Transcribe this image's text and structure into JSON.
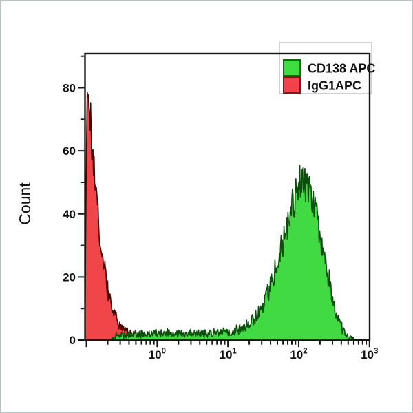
{
  "figure": {
    "background": "#ffffff",
    "frame_color": "#b7c2c2"
  },
  "chart_data": {
    "type": "area",
    "subtype": "flow-cytometry-histogram",
    "title": "",
    "xlabel": "",
    "ylabel": "Count",
    "x_scale": "log10",
    "x_range_log10": [
      -1.02,
      3.0
    ],
    "ylim": [
      0,
      90.8
    ],
    "grid": "off",
    "y_ticks": [
      0,
      20,
      40,
      60,
      80
    ],
    "y_minor_ticks": [
      10,
      30,
      50,
      70,
      90
    ],
    "x_ticks": [
      {
        "base": "",
        "exp": "",
        "log10": -1
      },
      {
        "base": "10",
        "exp": "0",
        "log10": 0
      },
      {
        "base": "10",
        "exp": "1",
        "log10": 1
      },
      {
        "base": "10",
        "exp": "2",
        "log10": 2
      },
      {
        "base": "10",
        "exp": "3",
        "log10": 3
      }
    ],
    "legend": {
      "position": "top-right",
      "items": [
        {
          "label": "CD138 APC",
          "swatch_fill": "#41dc41",
          "swatch_border": "#0c6b0c"
        },
        {
          "label": "IgG1APC",
          "swatch_fill": "#f2434c",
          "swatch_border": "#8d1118"
        }
      ]
    },
    "series": [
      {
        "name": "IgG1APC",
        "fill": "#f0464a",
        "stroke": "#4a0404",
        "noise_amp": 0.8,
        "clamp": 87,
        "points": [
          [
            -1.02,
            2
          ],
          [
            -1.005,
            45
          ],
          [
            -0.99,
            86
          ],
          [
            -0.975,
            78
          ],
          [
            -0.96,
            68
          ],
          [
            -0.945,
            74
          ],
          [
            -0.93,
            64
          ],
          [
            -0.915,
            56
          ],
          [
            -0.9,
            58
          ],
          [
            -0.885,
            50
          ],
          [
            -0.87,
            52
          ],
          [
            -0.855,
            44
          ],
          [
            -0.84,
            46
          ],
          [
            -0.825,
            38
          ],
          [
            -0.81,
            33
          ],
          [
            -0.79,
            28
          ],
          [
            -0.77,
            24
          ],
          [
            -0.75,
            25
          ],
          [
            -0.73,
            20
          ],
          [
            -0.71,
            17
          ],
          [
            -0.69,
            15
          ],
          [
            -0.66,
            12
          ],
          [
            -0.63,
            10
          ],
          [
            -0.6,
            8
          ],
          [
            -0.57,
            6.5
          ],
          [
            -0.54,
            5
          ],
          [
            -0.5,
            4
          ],
          [
            -0.46,
            3.2
          ],
          [
            -0.42,
            2.6
          ],
          [
            -0.37,
            2.2
          ],
          [
            -0.32,
            1.8
          ],
          [
            -0.26,
            1.5
          ],
          [
            -0.2,
            1.3
          ],
          [
            -0.13,
            1.2
          ],
          [
            -0.06,
            1.4
          ],
          [
            0,
            1.1
          ],
          [
            0.06,
            1.3
          ],
          [
            0.12,
            1
          ],
          [
            0.17,
            2.8
          ],
          [
            0.2,
            1
          ],
          [
            0.26,
            0.7
          ],
          [
            0.33,
            0.5
          ],
          [
            0.4,
            0.2
          ],
          [
            0.44,
            0
          ]
        ]
      },
      {
        "name": "CD138 APC",
        "fill": "#42da42",
        "stroke": "#0a4f0a",
        "noise_amp": 0.9,
        "clamp": 56.8,
        "points": [
          [
            -0.64,
            0.3
          ],
          [
            -0.6,
            1.2
          ],
          [
            -0.52,
            1.8
          ],
          [
            -0.44,
            1.4
          ],
          [
            -0.36,
            2
          ],
          [
            -0.28,
            1.6
          ],
          [
            -0.2,
            2.2
          ],
          [
            -0.12,
            1.8
          ],
          [
            -0.04,
            2.4
          ],
          [
            0.04,
            2
          ],
          [
            0.12,
            2.6
          ],
          [
            0.2,
            1.9
          ],
          [
            0.28,
            2.3
          ],
          [
            0.36,
            1.8
          ],
          [
            0.44,
            2.4
          ],
          [
            0.52,
            2
          ],
          [
            0.6,
            2.5
          ],
          [
            0.68,
            2.1
          ],
          [
            0.76,
            2.6
          ],
          [
            0.84,
            2.2
          ],
          [
            0.92,
            2.8
          ],
          [
            1,
            2.4
          ],
          [
            1.08,
            3
          ],
          [
            1.16,
            3.4
          ],
          [
            1.24,
            4.2
          ],
          [
            1.32,
            5.5
          ],
          [
            1.4,
            7.5
          ],
          [
            1.48,
            10
          ],
          [
            1.55,
            14
          ],
          [
            1.62,
            18
          ],
          [
            1.68,
            23
          ],
          [
            1.74,
            28
          ],
          [
            1.8,
            33
          ],
          [
            1.86,
            38
          ],
          [
            1.92,
            43
          ],
          [
            1.97,
            46
          ],
          [
            2.02,
            50
          ],
          [
            2.06,
            52
          ],
          [
            2.1,
            49
          ],
          [
            2.15,
            47
          ],
          [
            2.2,
            44
          ],
          [
            2.25,
            40
          ],
          [
            2.3,
            34
          ],
          [
            2.36,
            27
          ],
          [
            2.42,
            20
          ],
          [
            2.48,
            14
          ],
          [
            2.54,
            8
          ],
          [
            2.6,
            4
          ],
          [
            2.66,
            1.8
          ],
          [
            2.72,
            0.8
          ],
          [
            2.78,
            0.3
          ],
          [
            2.82,
            0
          ]
        ]
      }
    ]
  }
}
